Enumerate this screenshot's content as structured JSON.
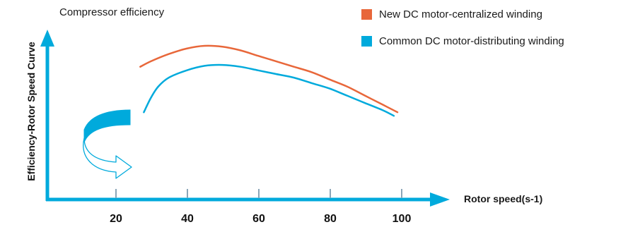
{
  "chart_data": {
    "type": "line",
    "title": "Compressor efficiency",
    "xlabel": "Rotor speed(s-1)",
    "ylabel": "Efficiency-Rotor Speed Curve",
    "x_ticks": [
      20,
      40,
      60,
      80,
      100
    ],
    "xlim": [
      0,
      115
    ],
    "ylim": [
      0,
      100
    ],
    "y_ticks_labeled": false,
    "grid": false,
    "legend_position": "top-right",
    "series": [
      {
        "name": "New DC motor-centralized winding",
        "color": "#e8673a",
        "points": [
          [
            27,
            73
          ],
          [
            30,
            76
          ],
          [
            35,
            80
          ],
          [
            40,
            83
          ],
          [
            45,
            84.5
          ],
          [
            50,
            84
          ],
          [
            55,
            82
          ],
          [
            60,
            79
          ],
          [
            65,
            76
          ],
          [
            70,
            73
          ],
          [
            75,
            70
          ],
          [
            80,
            66
          ],
          [
            85,
            62
          ],
          [
            90,
            57
          ],
          [
            95,
            52
          ],
          [
            99,
            48
          ]
        ]
      },
      {
        "name": "Common DC motor-distributing winding",
        "color": "#00aadc",
        "points": [
          [
            28,
            48
          ],
          [
            30,
            56
          ],
          [
            32,
            62
          ],
          [
            35,
            67
          ],
          [
            40,
            71
          ],
          [
            45,
            73.5
          ],
          [
            50,
            74
          ],
          [
            55,
            73
          ],
          [
            60,
            71
          ],
          [
            65,
            69
          ],
          [
            70,
            67
          ],
          [
            75,
            64
          ],
          [
            80,
            61
          ],
          [
            85,
            57
          ],
          [
            90,
            53
          ],
          [
            95,
            49
          ],
          [
            98,
            46
          ]
        ]
      }
    ]
  },
  "colors": {
    "axis": "#00aadc",
    "tick": "#8aa6b8",
    "arrow_fill": "#00aadc"
  },
  "icons": {
    "rotation_arrow": "rotation-arrow-icon"
  }
}
